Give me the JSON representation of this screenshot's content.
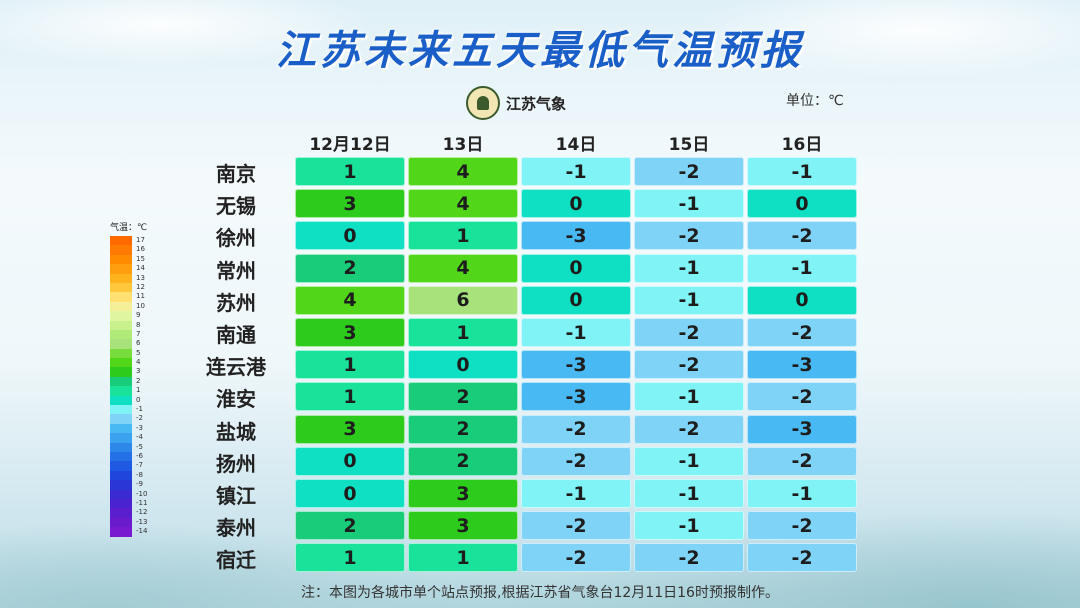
{
  "title": "江苏未来五天最低气温预报",
  "logo_text": "江苏气象",
  "unit": "单位：℃",
  "legend_title": "气温：℃",
  "columns": [
    "12月12日",
    "13日",
    "14日",
    "15日",
    "16日"
  ],
  "rows": [
    {
      "city": "南京",
      "vals": [
        "1",
        "4",
        "-1",
        "-2",
        "-1"
      ]
    },
    {
      "city": "无锡",
      "vals": [
        "3",
        "4",
        "0",
        "-1",
        "0"
      ]
    },
    {
      "city": "徐州",
      "vals": [
        "0",
        "1",
        "-3",
        "-2",
        "-2"
      ]
    },
    {
      "city": "常州",
      "vals": [
        "2",
        "4",
        "0",
        "-1",
        "-1"
      ]
    },
    {
      "city": "苏州",
      "vals": [
        "4",
        "6",
        "0",
        "-1",
        "0"
      ]
    },
    {
      "city": "南通",
      "vals": [
        "3",
        "1",
        "-1",
        "-2",
        "-2"
      ]
    },
    {
      "city": "连云港",
      "vals": [
        "1",
        "0",
        "-3",
        "-2",
        "-3"
      ]
    },
    {
      "city": "淮安",
      "vals": [
        "1",
        "2",
        "-3",
        "-1",
        "-2"
      ]
    },
    {
      "city": "盐城",
      "vals": [
        "3",
        "2",
        "-2",
        "-2",
        "-3"
      ]
    },
    {
      "city": "扬州",
      "vals": [
        "0",
        "2",
        "-2",
        "-1",
        "-2"
      ]
    },
    {
      "city": "镇江",
      "vals": [
        "0",
        "3",
        "-1",
        "-1",
        "-1"
      ]
    },
    {
      "city": "泰州",
      "vals": [
        "2",
        "3",
        "-2",
        "-1",
        "-2"
      ]
    },
    {
      "city": "宿迁",
      "vals": [
        "1",
        "1",
        "-2",
        "-2",
        "-2"
      ]
    }
  ],
  "temp_colors": {
    "6": "#a7e27a",
    "4": "#52d619",
    "3": "#2ccb1c",
    "2": "#18cc7a",
    "1": "#19e39a",
    "0": "#0fe0c4",
    "-1": "#7ff3f6",
    "-2": "#7fd3f6",
    "-3": "#48b9f2"
  },
  "legend": [
    {
      "label": "17",
      "color": "#ff6a00"
    },
    {
      "label": "16",
      "color": "#ff7a00"
    },
    {
      "label": "15",
      "color": "#ff8c00"
    },
    {
      "label": "14",
      "color": "#ff9f10"
    },
    {
      "label": "13",
      "color": "#ffb21e"
    },
    {
      "label": "12",
      "color": "#ffc83c"
    },
    {
      "label": "11",
      "color": "#ffe070"
    },
    {
      "label": "10",
      "color": "#f4f09a"
    },
    {
      "label": "9",
      "color": "#e0f5a0"
    },
    {
      "label": "8",
      "color": "#c8f08c"
    },
    {
      "label": "7",
      "color": "#b0ea78"
    },
    {
      "label": "6",
      "color": "#a7e27a"
    },
    {
      "label": "5",
      "color": "#78dc3c"
    },
    {
      "label": "4",
      "color": "#52d619"
    },
    {
      "label": "3",
      "color": "#2ccb1c"
    },
    {
      "label": "2",
      "color": "#18cc7a"
    },
    {
      "label": "1",
      "color": "#19e39a"
    },
    {
      "label": "0",
      "color": "#0fe0c4"
    },
    {
      "label": "-1",
      "color": "#7ff3f6"
    },
    {
      "label": "-2",
      "color": "#7fd3f6"
    },
    {
      "label": "-3",
      "color": "#48b9f2"
    },
    {
      "label": "-4",
      "color": "#3aa2ee"
    },
    {
      "label": "-5",
      "color": "#2e88ea"
    },
    {
      "label": "-6",
      "color": "#2470e6"
    },
    {
      "label": "-7",
      "color": "#1e5ae2"
    },
    {
      "label": "-8",
      "color": "#1f46dc"
    },
    {
      "label": "-9",
      "color": "#2a36d6"
    },
    {
      "label": "-10",
      "color": "#3a2ad2"
    },
    {
      "label": "-11",
      "color": "#4a22d0"
    },
    {
      "label": "-12",
      "color": "#5a1ecc"
    },
    {
      "label": "-13",
      "color": "#6a1ccc"
    },
    {
      "label": "-14",
      "color": "#7a1ad0"
    }
  ],
  "note": "注：本图为各城市单个站点预报,根据江苏省气象台12月11日16时预报制作。"
}
